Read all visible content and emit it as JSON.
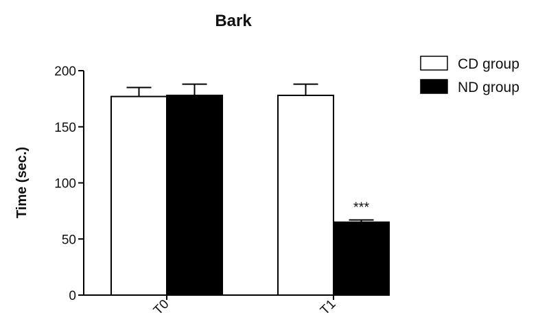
{
  "chart_data": {
    "type": "bar",
    "title": "Bark",
    "xlabel": "",
    "ylabel": "Time (sec.)",
    "ylim": [
      0,
      200
    ],
    "yticks": [
      "0",
      "50",
      "100",
      "150",
      "200"
    ],
    "categories": [
      "T0",
      "T1"
    ],
    "series": [
      {
        "name": "CD group",
        "values": [
          177,
          178
        ],
        "errors": [
          8,
          10
        ],
        "color": "#ffffff"
      },
      {
        "name": "ND group",
        "values": [
          178,
          65
        ],
        "errors": [
          10,
          2
        ],
        "color": "#000000"
      }
    ],
    "annotations": [
      {
        "text": "***",
        "category": "T1",
        "series": "ND group"
      }
    ],
    "legend_position": "top-right",
    "grid": false
  }
}
